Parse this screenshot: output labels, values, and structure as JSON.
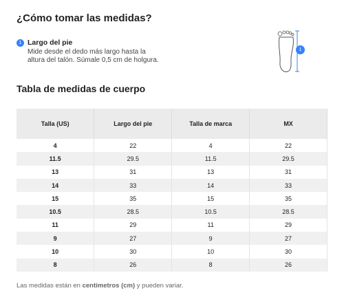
{
  "header": {
    "title": "¿Cómo tomar las medidas?"
  },
  "step": {
    "number": "1",
    "title": "Largo del pie",
    "text_lines": [
      "Mide desde el dedo más largo hasta la",
      "altura del talón. Súmale 0,5 cm de holgura."
    ],
    "badge": "1"
  },
  "table": {
    "title": "Tabla de medidas de cuerpo",
    "headers": [
      "Talla (US)",
      "Largo del pie",
      "Talla de marca",
      "MX"
    ],
    "rows": [
      [
        "4",
        "22",
        "4",
        "22"
      ],
      [
        "11.5",
        "29.5",
        "11.5",
        "29.5"
      ],
      [
        "13",
        "31",
        "13",
        "31"
      ],
      [
        "14",
        "33",
        "14",
        "33"
      ],
      [
        "15",
        "35",
        "15",
        "35"
      ],
      [
        "10.5",
        "28.5",
        "10.5",
        "28.5"
      ],
      [
        "11",
        "29",
        "11",
        "29"
      ],
      [
        "9",
        "27",
        "9",
        "27"
      ],
      [
        "10",
        "30",
        "10",
        "30"
      ],
      [
        "8",
        "26",
        "8",
        "26"
      ]
    ]
  },
  "footnote": {
    "before": "Las medidas están en ",
    "bold": "centímetros (cm)",
    "after": " y pueden variar."
  }
}
